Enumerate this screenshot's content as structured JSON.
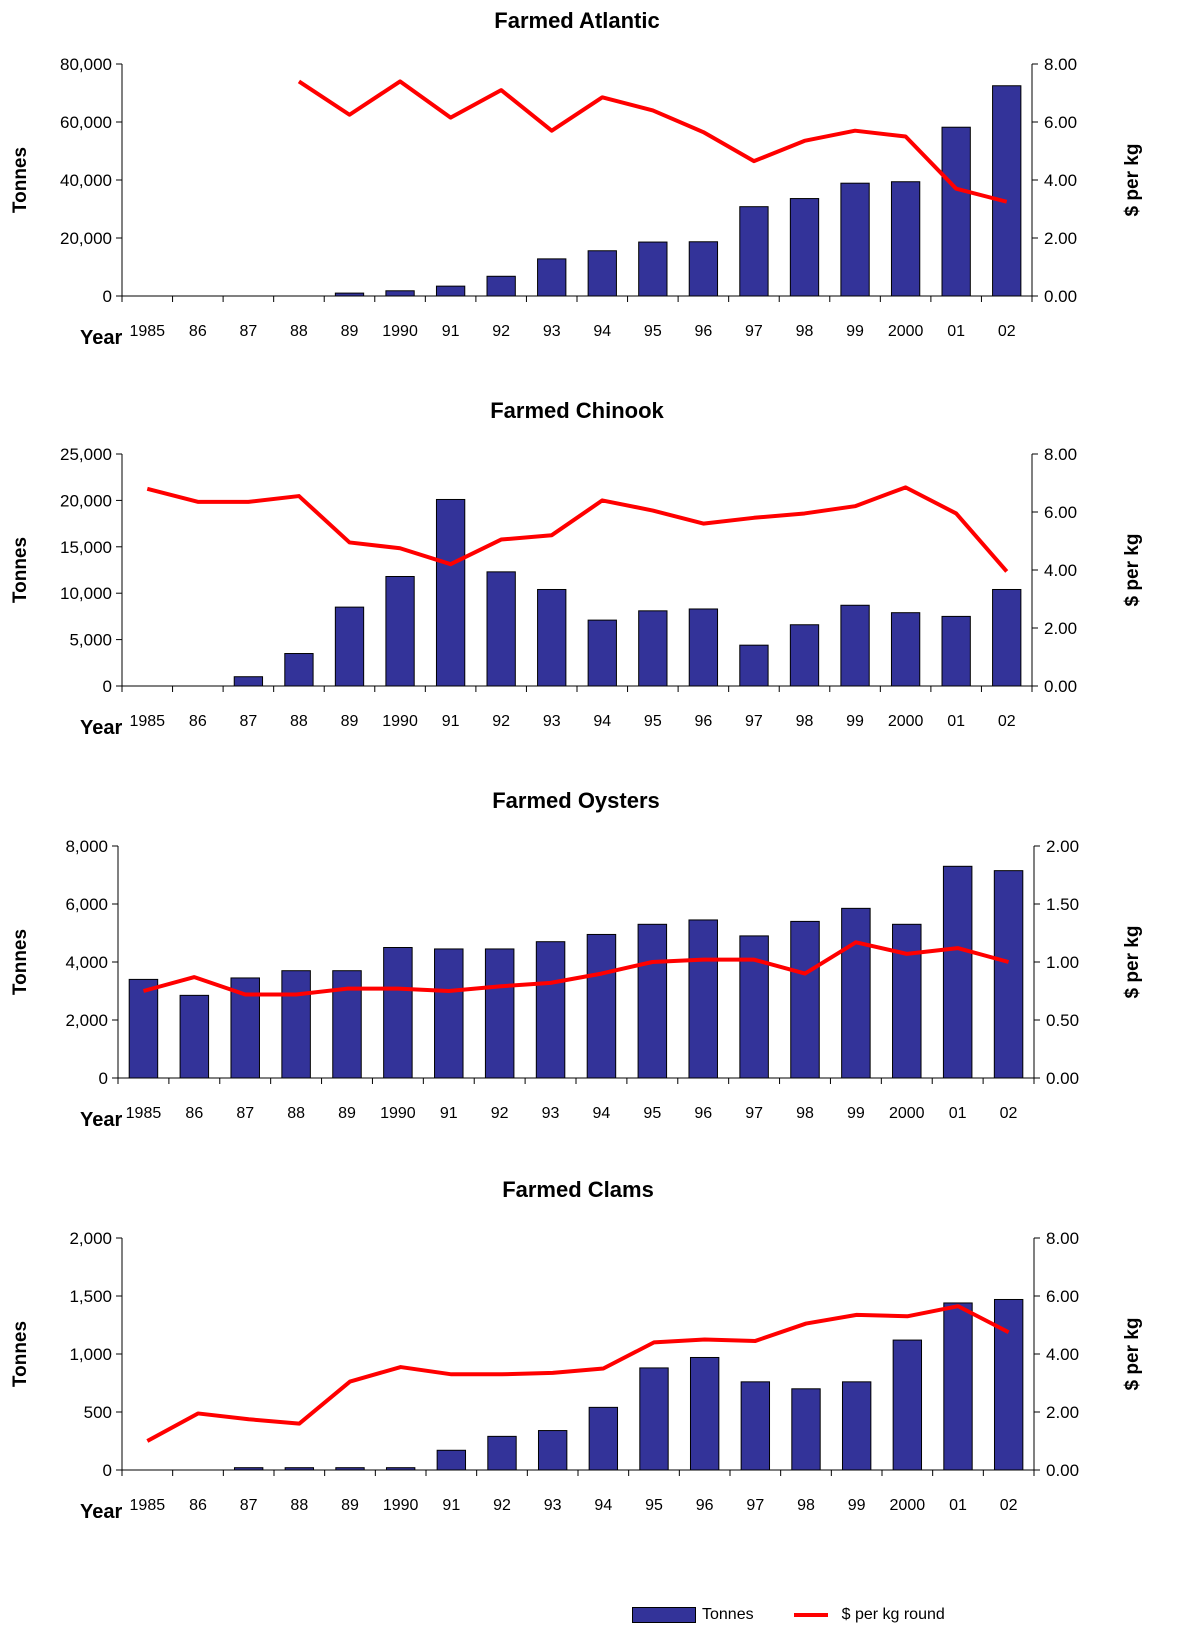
{
  "colors": {
    "bar": "#333399",
    "bar_stroke": "#000000",
    "line": "#ff0000"
  },
  "legend": {
    "bar_label": "Tonnes",
    "line_label": "$ per kg round"
  },
  "chart_data": [
    {
      "type": "bar",
      "title": "Farmed Atlantic",
      "xlabel": "Year",
      "ylabel": "Tonnes",
      "y2label": "$ per kg",
      "categories": [
        "1985",
        "86",
        "87",
        "88",
        "89",
        "1990",
        "91",
        "92",
        "93",
        "94",
        "95",
        "96",
        "97",
        "98",
        "99",
        "2000",
        "01",
        "02"
      ],
      "ylim": [
        0,
        80000
      ],
      "yticks": [
        "0",
        "20,000",
        "40,000",
        "60,000",
        "80,000"
      ],
      "y2lim": [
        0,
        8
      ],
      "y2ticks": [
        "0.00",
        "2.00",
        "4.00",
        "6.00",
        "8.00"
      ],
      "series": [
        {
          "name": "Tonnes",
          "type": "bar",
          "values": [
            0,
            0,
            0,
            0,
            1000,
            1800,
            3400,
            6800,
            12800,
            15600,
            18600,
            18700,
            30800,
            33600,
            38900,
            39400,
            58200,
            72500
          ]
        },
        {
          "name": "$ per kg round",
          "type": "line",
          "axis": "right",
          "values": [
            null,
            null,
            null,
            7.4,
            6.25,
            7.4,
            6.15,
            7.1,
            5.7,
            6.85,
            6.4,
            5.65,
            4.65,
            5.35,
            5.7,
            5.5,
            3.7,
            3.25
          ]
        }
      ]
    },
    {
      "type": "bar",
      "title": "Farmed Chinook",
      "xlabel": "Year",
      "ylabel": "Tonnes",
      "y2label": "$ per kg",
      "categories": [
        "1985",
        "86",
        "87",
        "88",
        "89",
        "1990",
        "91",
        "92",
        "93",
        "94",
        "95",
        "96",
        "97",
        "98",
        "99",
        "2000",
        "01",
        "02"
      ],
      "ylim": [
        0,
        25000
      ],
      "yticks": [
        "0",
        "5,000",
        "10,000",
        "15,000",
        "20,000",
        "25,000"
      ],
      "y2lim": [
        0,
        8
      ],
      "y2ticks": [
        "0.00",
        "2.00",
        "4.00",
        "6.00",
        "8.00"
      ],
      "series": [
        {
          "name": "Tonnes",
          "type": "bar",
          "values": [
            0,
            0,
            1000,
            3500,
            8500,
            11800,
            20100,
            12300,
            10400,
            7100,
            8100,
            8300,
            4400,
            6600,
            8700,
            7900,
            7500,
            10400
          ]
        },
        {
          "name": "$ per kg round",
          "type": "line",
          "axis": "right",
          "values": [
            6.8,
            6.35,
            6.35,
            6.55,
            4.95,
            4.75,
            4.2,
            5.05,
            5.2,
            6.4,
            6.05,
            5.6,
            5.8,
            5.95,
            6.2,
            6.85,
            5.95,
            3.95
          ]
        }
      ]
    },
    {
      "type": "bar",
      "title": "Farmed Oysters",
      "xlabel": "Year",
      "ylabel": "Tonnes",
      "y2label": "$ per kg",
      "categories": [
        "1985",
        "86",
        "87",
        "88",
        "89",
        "1990",
        "91",
        "92",
        "93",
        "94",
        "95",
        "96",
        "97",
        "98",
        "99",
        "2000",
        "01",
        "02"
      ],
      "ylim": [
        0,
        8000
      ],
      "yticks": [
        "0",
        "2,000",
        "4,000",
        "6,000",
        "8,000"
      ],
      "y2lim": [
        0,
        2
      ],
      "y2ticks": [
        "0.00",
        "0.50",
        "1.00",
        "1.50",
        "2.00"
      ],
      "series": [
        {
          "name": "Tonnes",
          "type": "bar",
          "values": [
            3400,
            2850,
            3450,
            3700,
            3700,
            4500,
            4450,
            4450,
            4700,
            4950,
            5300,
            5450,
            4900,
            5400,
            5850,
            5300,
            7300,
            7150
          ]
        },
        {
          "name": "$ per kg round",
          "type": "line",
          "axis": "right",
          "values": [
            0.75,
            0.87,
            0.72,
            0.72,
            0.77,
            0.77,
            0.75,
            0.79,
            0.82,
            0.9,
            1.0,
            1.02,
            1.02,
            0.9,
            1.17,
            1.07,
            1.12,
            1.0
          ]
        }
      ]
    },
    {
      "type": "bar",
      "title": "Farmed Clams",
      "xlabel": "Year",
      "ylabel": "Tonnes",
      "y2label": "$ per kg",
      "categories": [
        "1985",
        "86",
        "87",
        "88",
        "89",
        "1990",
        "91",
        "92",
        "93",
        "94",
        "95",
        "96",
        "97",
        "98",
        "99",
        "2000",
        "01",
        "02"
      ],
      "ylim": [
        0,
        2000
      ],
      "yticks": [
        "0",
        "500",
        "1,000",
        "1,500",
        "2,000"
      ],
      "y2lim": [
        0,
        8
      ],
      "y2ticks": [
        "0.00",
        "2.00",
        "4.00",
        "6.00",
        "8.00"
      ],
      "series": [
        {
          "name": "Tonnes",
          "type": "bar",
          "values": [
            0,
            0,
            20,
            20,
            20,
            20,
            170,
            290,
            340,
            540,
            880,
            970,
            760,
            700,
            760,
            1120,
            1440,
            1470
          ]
        },
        {
          "name": "$ per kg round",
          "type": "line",
          "axis": "right",
          "values": [
            1.0,
            1.95,
            1.75,
            1.6,
            3.05,
            3.55,
            3.3,
            3.3,
            3.35,
            3.5,
            4.4,
            4.5,
            4.45,
            5.05,
            5.35,
            5.3,
            5.65,
            4.75
          ]
        }
      ]
    }
  ]
}
